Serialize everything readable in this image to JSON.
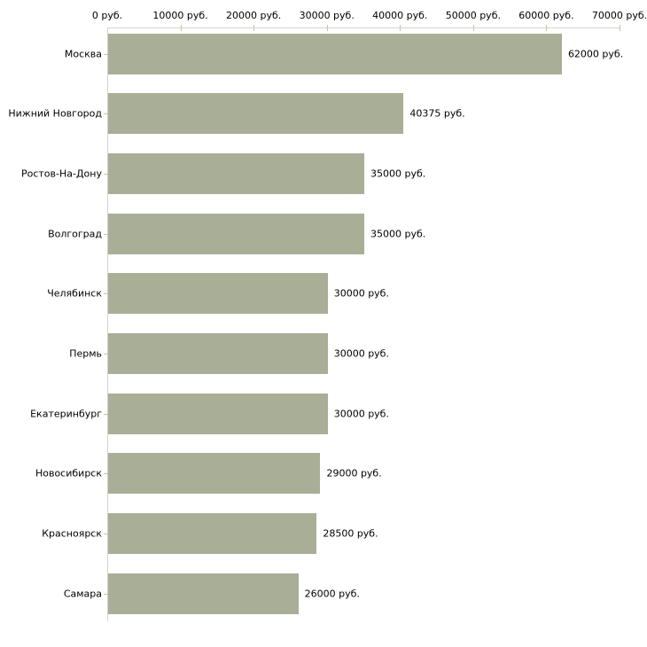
{
  "chart_data": {
    "type": "bar",
    "orientation": "horizontal",
    "title": "",
    "xlabel": "",
    "ylabel": "",
    "categories": [
      "Москва",
      "Нижний Новгород",
      "Ростов-На-Дону",
      "Волгоград",
      "Челябинск",
      "Пермь",
      "Екатеринбург",
      "Новосибирск",
      "Красноярск",
      "Самара"
    ],
    "values": [
      62000,
      40375,
      35000,
      35000,
      30000,
      30000,
      30000,
      29000,
      28500,
      26000
    ],
    "value_labels": [
      "62000 руб.",
      "40375 руб.",
      "35000 руб.",
      "35000 руб.",
      "30000 руб.",
      "30000 руб.",
      "30000 руб.",
      "29000 руб.",
      "28500 руб.",
      "26000 руб."
    ],
    "x_ticks": [
      0,
      10000,
      20000,
      30000,
      40000,
      50000,
      60000,
      70000
    ],
    "x_tick_labels": [
      "0 руб.",
      "10000 руб.",
      "20000 руб.",
      "30000 руб.",
      "40000 руб.",
      "50000 руб.",
      "60000 руб.",
      "70000 руб."
    ],
    "xlim": [
      0,
      70000
    ],
    "grid": false,
    "legend_position": "none",
    "axis_position": "top",
    "bar_color": "#a9ae97",
    "axis_line_color": "#d3d3d0",
    "tick_color": "#c6c79b",
    "text_color": "#000000",
    "background_color": "#ffffff"
  }
}
